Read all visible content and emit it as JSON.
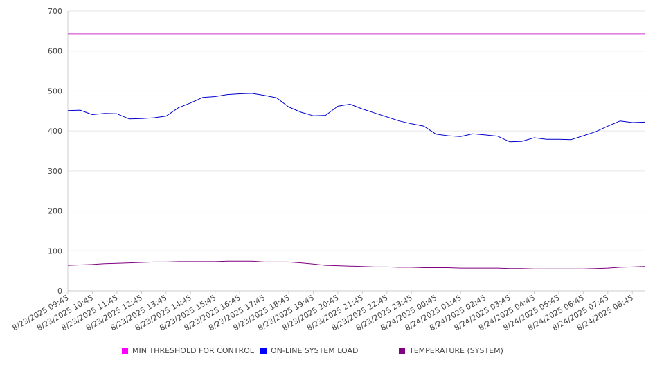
{
  "chart_data": {
    "type": "line",
    "title": "",
    "xlabel": "",
    "ylabel": "",
    "ylim": [
      0,
      700
    ],
    "yticks": [
      0,
      100,
      200,
      300,
      400,
      500,
      600,
      700
    ],
    "grid": true,
    "legend_position": "bottom",
    "x_tick_labels": [
      "8/23/2025 09:45",
      "8/23/2025 10:45",
      "8/23/2025 11:45",
      "8/23/2025 12:45",
      "8/23/2025 13:45",
      "8/23/2025 14:45",
      "8/23/2025 15:45",
      "8/23/2025 16:45",
      "8/23/2025 17:45",
      "8/23/2025 18:45",
      "8/23/2025 19:45",
      "8/23/2025 20:45",
      "8/23/2025 21:45",
      "8/23/2025 22:45",
      "8/23/2025 23:45",
      "8/24/2025 00:45",
      "8/24/2025 01:45",
      "8/24/2025 02:45",
      "8/24/2025 03:45",
      "8/24/2025 04:45",
      "8/24/2025 05:45",
      "8/24/2025 06:45",
      "8/24/2025 07:45",
      "8/24/2025 08:45"
    ],
    "x": [
      "8/23/2025 09:45",
      "8/23/2025 10:15",
      "8/23/2025 10:45",
      "8/23/2025 11:15",
      "8/23/2025 11:45",
      "8/23/2025 12:15",
      "8/23/2025 12:45",
      "8/23/2025 13:15",
      "8/23/2025 13:45",
      "8/23/2025 14:15",
      "8/23/2025 14:45",
      "8/23/2025 15:15",
      "8/23/2025 15:45",
      "8/23/2025 16:15",
      "8/23/2025 16:45",
      "8/23/2025 17:15",
      "8/23/2025 17:45",
      "8/23/2025 18:15",
      "8/23/2025 18:45",
      "8/23/2025 19:15",
      "8/23/2025 19:45",
      "8/23/2025 20:15",
      "8/23/2025 20:45",
      "8/23/2025 21:15",
      "8/23/2025 21:45",
      "8/23/2025 22:15",
      "8/23/2025 22:45",
      "8/23/2025 23:15",
      "8/23/2025 23:45",
      "8/24/2025 00:15",
      "8/24/2025 00:45",
      "8/24/2025 01:15",
      "8/24/2025 01:45",
      "8/24/2025 02:15",
      "8/24/2025 02:45",
      "8/24/2025 03:15",
      "8/24/2025 03:45",
      "8/24/2025 04:15",
      "8/24/2025 04:45",
      "8/24/2025 05:15",
      "8/24/2025 05:45",
      "8/24/2025 06:15",
      "8/24/2025 06:45",
      "8/24/2025 07:15",
      "8/24/2025 07:45",
      "8/24/2025 08:15",
      "8/24/2025 08:45",
      "8/24/2025 09:15"
    ],
    "series": [
      {
        "name": "MIN THRESHOLD FOR CONTROL",
        "color": "#cc33cc",
        "values": [
          643,
          643,
          643,
          643,
          643,
          643,
          643,
          643,
          643,
          643,
          643,
          643,
          643,
          643,
          643,
          643,
          643,
          643,
          643,
          643,
          643,
          643,
          643,
          643,
          643,
          643,
          643,
          643,
          643,
          643,
          643,
          643,
          643,
          643,
          643,
          643,
          643,
          643,
          643,
          643,
          643,
          643,
          643,
          643,
          643,
          643,
          643,
          643
        ]
      },
      {
        "name": "ON-LINE SYSTEM LOAD",
        "color": "#0000cc",
        "values": [
          451,
          452,
          441,
          444,
          443,
          430,
          431,
          433,
          437,
          458,
          470,
          484,
          486,
          491,
          493,
          494,
          489,
          483,
          460,
          447,
          438,
          439,
          462,
          467,
          455,
          445,
          435,
          425,
          418,
          412,
          392,
          388,
          386,
          393,
          390,
          387,
          373,
          374,
          383,
          379,
          379,
          378,
          388,
          398,
          412,
          425,
          421,
          422
        ]
      },
      {
        "name": "TEMPERATURE (SYSTEM)",
        "color": "#800080",
        "values": [
          64,
          65,
          66,
          68,
          69,
          70,
          71,
          72,
          72,
          73,
          73,
          73,
          73,
          74,
          74,
          74,
          72,
          72,
          72,
          70,
          67,
          64,
          63,
          62,
          61,
          60,
          60,
          59,
          59,
          58,
          58,
          58,
          57,
          57,
          57,
          57,
          56,
          56,
          55,
          55,
          55,
          55,
          55,
          56,
          57,
          59,
          60,
          61
        ]
      }
    ]
  }
}
